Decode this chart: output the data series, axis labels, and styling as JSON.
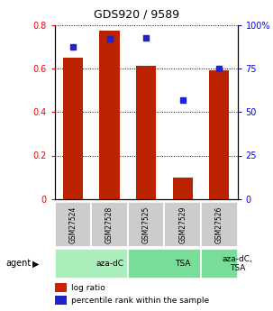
{
  "title": "GDS920 / 9589",
  "samples": [
    "GSM27524",
    "GSM27528",
    "GSM27525",
    "GSM27529",
    "GSM27526"
  ],
  "log_ratio": [
    0.65,
    0.775,
    0.61,
    0.1,
    0.59
  ],
  "percentile_rank": [
    87.5,
    92.0,
    92.5,
    57.0,
    75.0
  ],
  "groups": [
    {
      "label": "aza-dC",
      "span": [
        0,
        2
      ],
      "color": "#aaeebb"
    },
    {
      "label": "TSA",
      "span": [
        2,
        4
      ],
      "color": "#77dd99"
    },
    {
      "label": "aza-dC,\nTSA",
      "span": [
        4,
        5
      ],
      "color": "#77dd99"
    }
  ],
  "bar_color": "#bb2200",
  "dot_color": "#2222cc",
  "ylim_left": [
    0,
    0.8
  ],
  "ylim_right": [
    0,
    100
  ],
  "yticks_left": [
    0,
    0.2,
    0.4,
    0.6,
    0.8
  ],
  "ytick_labels_left": [
    "0",
    "0.2",
    "0.4",
    "0.6",
    "0.8"
  ],
  "yticks_right": [
    0,
    25,
    50,
    75,
    100
  ],
  "ytick_labels_right": [
    "0",
    "25",
    "50",
    "75",
    "100%"
  ],
  "bar_width": 0.55,
  "background_color": "#ffffff",
  "agent_label": "agent",
  "sample_box_color": "#cccccc",
  "legend_bar_color": "#cc2200",
  "legend_dot_color": "#2222cc"
}
